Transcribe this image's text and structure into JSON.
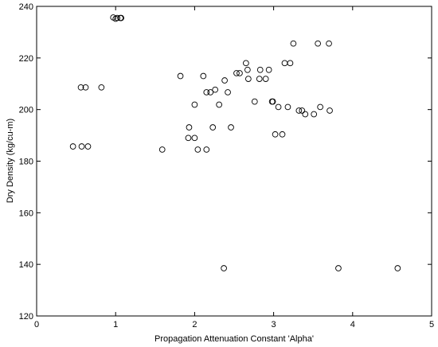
{
  "chart_data": {
    "type": "scatter",
    "xlabel": "Propagation Attenuation Constant 'Alpha'",
    "ylabel": "Dry Density (kg/cu-m)",
    "xlim": [
      0,
      5
    ],
    "ylim": [
      120,
      240
    ],
    "xticks": [
      "0",
      "1",
      "2",
      "3",
      "4",
      "5"
    ],
    "yticks": [
      "120",
      "140",
      "160",
      "180",
      "200",
      "220",
      "240"
    ],
    "grid": false,
    "marker": "open-circle",
    "marker_color": "#000000",
    "points": [
      [
        0.97,
        235.7
      ],
      [
        1.0,
        235.2
      ],
      [
        1.02,
        235.5
      ],
      [
        1.06,
        235.5
      ],
      [
        1.07,
        235.5
      ],
      [
        0.46,
        185.7
      ],
      [
        0.57,
        185.7
      ],
      [
        0.65,
        185.7
      ],
      [
        0.56,
        208.6
      ],
      [
        0.62,
        208.6
      ],
      [
        0.82,
        208.6
      ],
      [
        1.59,
        184.5
      ],
      [
        1.82,
        213.0
      ],
      [
        1.92,
        189.0
      ],
      [
        1.93,
        193.1
      ],
      [
        2.0,
        201.9
      ],
      [
        2.0,
        189.0
      ],
      [
        2.04,
        184.5
      ],
      [
        2.11,
        213.0
      ],
      [
        2.15,
        184.5
      ],
      [
        2.15,
        206.7
      ],
      [
        2.2,
        206.7
      ],
      [
        2.23,
        193.1
      ],
      [
        2.26,
        207.7
      ],
      [
        2.31,
        201.9
      ],
      [
        2.37,
        138.5
      ],
      [
        2.38,
        211.3
      ],
      [
        2.42,
        206.7
      ],
      [
        2.46,
        193.1
      ],
      [
        2.53,
        214.1
      ],
      [
        2.57,
        214.1
      ],
      [
        2.65,
        218.0
      ],
      [
        2.67,
        215.4
      ],
      [
        2.68,
        211.9
      ],
      [
        2.76,
        203.1
      ],
      [
        2.82,
        211.9
      ],
      [
        2.83,
        215.4
      ],
      [
        2.9,
        211.9
      ],
      [
        2.94,
        215.4
      ],
      [
        2.98,
        203.1
      ],
      [
        2.99,
        203.1
      ],
      [
        3.02,
        190.4
      ],
      [
        3.06,
        201.0
      ],
      [
        3.11,
        190.4
      ],
      [
        3.14,
        218.0
      ],
      [
        3.18,
        201.0
      ],
      [
        3.21,
        218.0
      ],
      [
        3.25,
        225.6
      ],
      [
        3.32,
        199.6
      ],
      [
        3.36,
        199.6
      ],
      [
        3.4,
        198.2
      ],
      [
        3.51,
        198.2
      ],
      [
        3.56,
        225.6
      ],
      [
        3.59,
        201.0
      ],
      [
        3.7,
        225.6
      ],
      [
        3.71,
        199.6
      ],
      [
        3.82,
        138.5
      ],
      [
        4.57,
        138.5
      ]
    ]
  }
}
